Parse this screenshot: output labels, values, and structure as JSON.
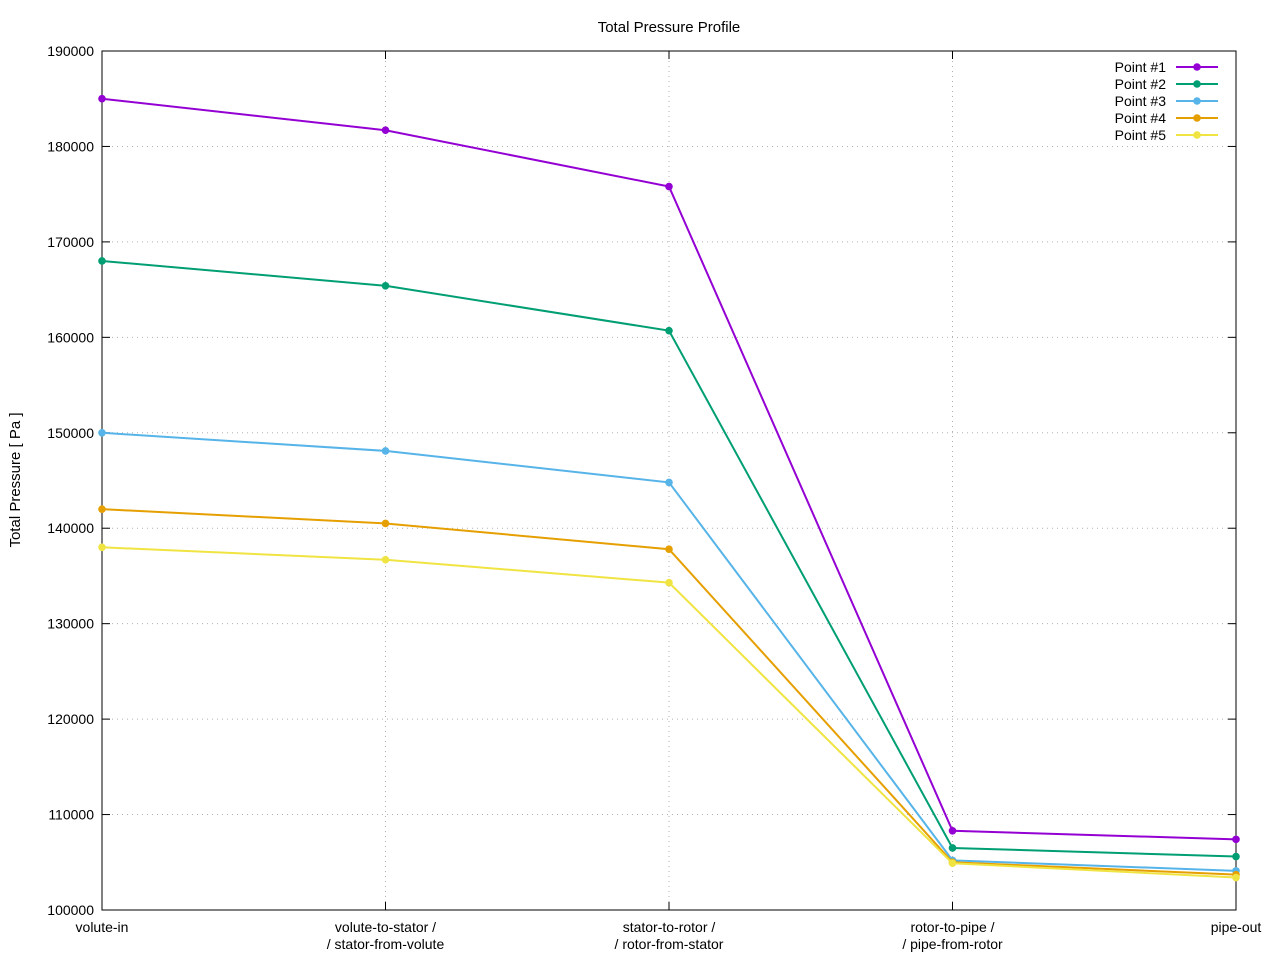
{
  "chart_data": {
    "type": "line",
    "title": "Total Pressure Profile",
    "xlabel": "",
    "ylabel": "Total Pressure [ Pa ]",
    "categories": [
      [
        "volute-in"
      ],
      [
        "volute-to-stator /",
        "/ stator-from-volute"
      ],
      [
        "stator-to-rotor /",
        "/ rotor-from-stator"
      ],
      [
        "rotor-to-pipe /",
        "/ pipe-from-rotor"
      ],
      [
        "pipe-out"
      ]
    ],
    "ylim": [
      100000,
      190000
    ],
    "yticks": [
      100000,
      110000,
      120000,
      130000,
      140000,
      150000,
      160000,
      170000,
      180000,
      190000
    ],
    "grid": true,
    "legend_position": "top-right",
    "series": [
      {
        "name": "Point #1",
        "color": "#9400d3",
        "values": [
          185000,
          181700,
          175800,
          108300,
          107400
        ]
      },
      {
        "name": "Point #2",
        "color": "#009e73",
        "values": [
          168000,
          165400,
          160700,
          106500,
          105600
        ]
      },
      {
        "name": "Point #3",
        "color": "#56b4e9",
        "values": [
          150000,
          148100,
          144800,
          105200,
          104100
        ]
      },
      {
        "name": "Point #4",
        "color": "#e69f00",
        "values": [
          142000,
          140500,
          137800,
          105000,
          103700
        ]
      },
      {
        "name": "Point #5",
        "color": "#f0e442",
        "values": [
          138000,
          136700,
          134300,
          104900,
          103400
        ]
      }
    ]
  }
}
